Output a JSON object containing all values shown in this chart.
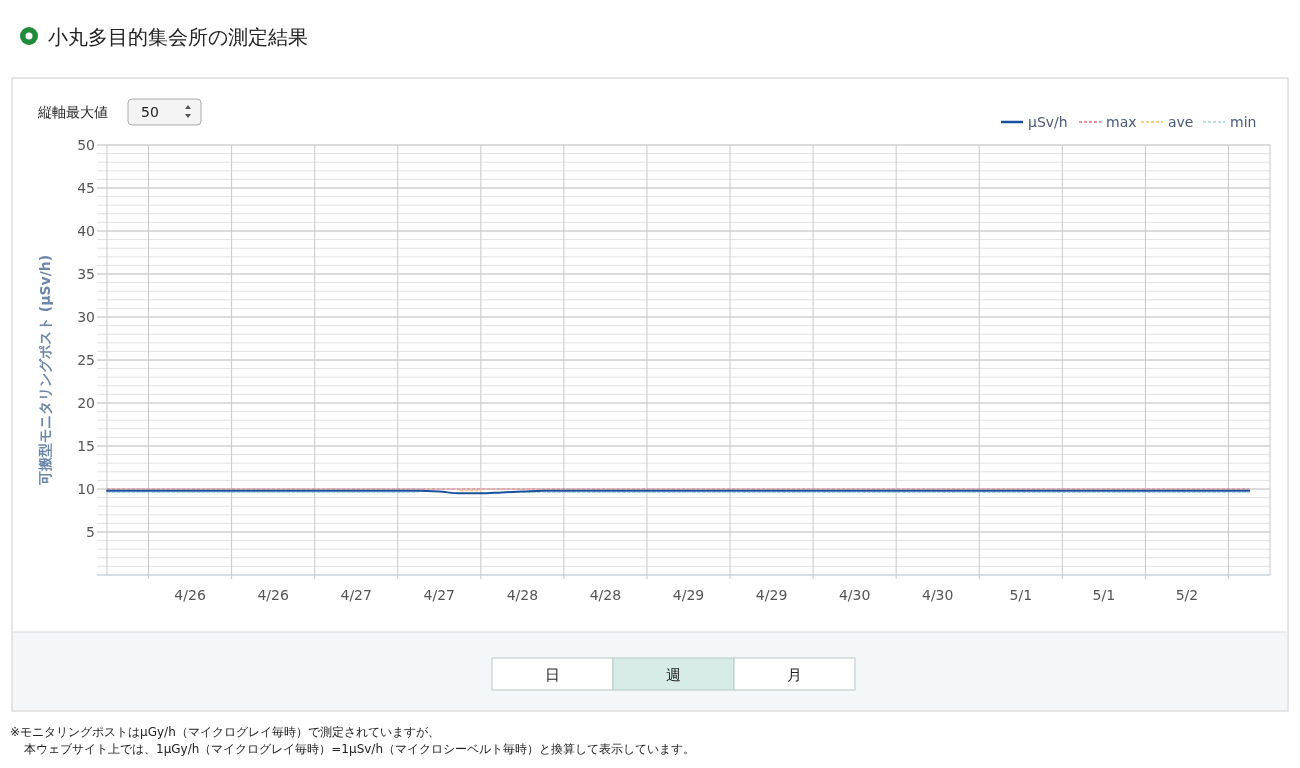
{
  "chart_data": {
    "type": "line",
    "title": "小丸多目的集会所の測定結果",
    "ylabel": "可搬型モニタリングポスト (μSv/h)",
    "categories": [
      null,
      null,
      null,
      null,
      "4/26",
      null,
      null,
      null,
      "4/26",
      null,
      null,
      null,
      "4/27",
      null,
      null,
      null,
      "4/27",
      null,
      null,
      null,
      "4/28",
      null,
      null,
      null,
      "4/28",
      null,
      null,
      null,
      "4/29",
      null,
      null,
      null,
      "4/29",
      null,
      null,
      null,
      "4/30",
      null,
      null,
      null,
      "4/30",
      null,
      null,
      null,
      "5/1",
      null,
      null,
      null,
      "5/1",
      null,
      null,
      null,
      "5/2",
      null,
      null,
      null
    ],
    "series": [
      {
        "name": "μSv/h",
        "color": "#1c4f9c",
        "line_style": "solid",
        "values": [
          9.8,
          9.8,
          9.8,
          9.8,
          9.8,
          9.8,
          9.8,
          9.8,
          9.8,
          9.8,
          9.8,
          9.8,
          9.8,
          9.8,
          9.8,
          9.8,
          9.7,
          9.5,
          9.5,
          9.6,
          9.7,
          9.8,
          9.8,
          9.8,
          9.8,
          9.8,
          9.8,
          9.8,
          9.8,
          9.8,
          9.8,
          9.8,
          9.8,
          9.8,
          9.8,
          9.8,
          9.8,
          9.8,
          9.8,
          9.8,
          9.8,
          9.8,
          9.8,
          9.8,
          9.8,
          9.8,
          9.8,
          9.8,
          9.8,
          9.8,
          9.8,
          9.8,
          9.8,
          9.8,
          9.8,
          9.8
        ]
      },
      {
        "name": "max",
        "color": "#e0707a",
        "line_style": "dashed",
        "values": [
          10,
          10,
          10,
          10,
          10,
          10,
          10,
          10,
          10,
          10,
          10,
          10,
          10,
          10,
          10,
          10,
          10,
          10,
          10,
          10,
          10,
          10,
          10,
          10,
          10,
          10,
          10,
          10,
          10,
          10,
          10,
          10,
          10,
          10,
          10,
          10,
          10,
          10,
          10,
          10,
          10,
          10,
          10,
          10,
          10,
          10,
          10,
          10,
          10,
          10,
          10,
          10,
          10,
          10,
          10,
          10
        ]
      },
      {
        "name": "ave",
        "color": "#f5c05a",
        "line_style": "dashed",
        "values": [
          null,
          null,
          null,
          null,
          null,
          null,
          null,
          null,
          null,
          null,
          null,
          null,
          null,
          null,
          null,
          null,
          null,
          9.8,
          9.8,
          null,
          null,
          null,
          null,
          null,
          null,
          null,
          null,
          null,
          null,
          null,
          null,
          null,
          null,
          null,
          null,
          null,
          null,
          null,
          null,
          null,
          null,
          null,
          null,
          null,
          null,
          null,
          null,
          null,
          null,
          null,
          null,
          null,
          null,
          null,
          null,
          null
        ]
      },
      {
        "name": "min",
        "color": "#9fd3dc",
        "line_style": "dashed",
        "values": [
          9.6,
          9.6,
          9.6,
          9.6,
          9.6,
          9.6,
          9.6,
          9.6,
          9.6,
          9.6,
          9.6,
          9.6,
          9.6,
          9.6,
          9.6,
          9.6,
          null,
          null,
          null,
          null,
          9.6,
          9.6,
          9.6,
          9.6,
          9.6,
          9.6,
          9.6,
          9.6,
          9.6,
          9.6,
          9.6,
          9.6,
          9.6,
          9.6,
          9.6,
          9.6,
          9.6,
          9.6,
          9.6,
          9.6,
          9.6,
          9.6,
          9.6,
          9.6,
          9.6,
          9.6,
          9.6,
          9.6,
          9.6,
          9.6,
          9.6,
          9.6,
          9.6,
          9.6,
          9.6,
          9.6
        ]
      }
    ],
    "ylim": [
      0,
      50
    ],
    "yticks": [
      5,
      10,
      15,
      20,
      25,
      30,
      35,
      40,
      45,
      50
    ],
    "grid": true,
    "legend": "top right",
    "marker": "none",
    "annotations": [
      "縦軸最大値",
      "50",
      "日",
      "週",
      "月",
      "※モニタリングポストはμGy/h（マイクログレイ毎時）で測定されていますが、",
      "本ウェブサイト上では、1μGy/h（マイクログレイ毎時）=1μSv/h（マイクロシーベルト毎時）と換算して表示しています。"
    ]
  }
}
